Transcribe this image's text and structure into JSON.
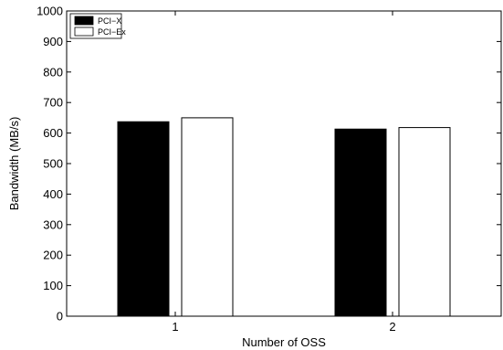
{
  "chart_data": {
    "type": "bar",
    "categories": [
      "1",
      "2"
    ],
    "series": [
      {
        "name": "PCI−X",
        "values": [
          637,
          613
        ],
        "color": "#000000"
      },
      {
        "name": "PCI−Ex",
        "values": [
          650,
          618
        ],
        "color": "#ffffff"
      }
    ],
    "xlabel": "Number of OSS",
    "ylabel": "Bandwidth (MB/s)",
    "ylim": [
      0,
      1000
    ],
    "yticks": [
      0,
      100,
      200,
      300,
      400,
      500,
      600,
      700,
      800,
      900,
      1000
    ],
    "grid": false,
    "legend_position": "top-left"
  }
}
